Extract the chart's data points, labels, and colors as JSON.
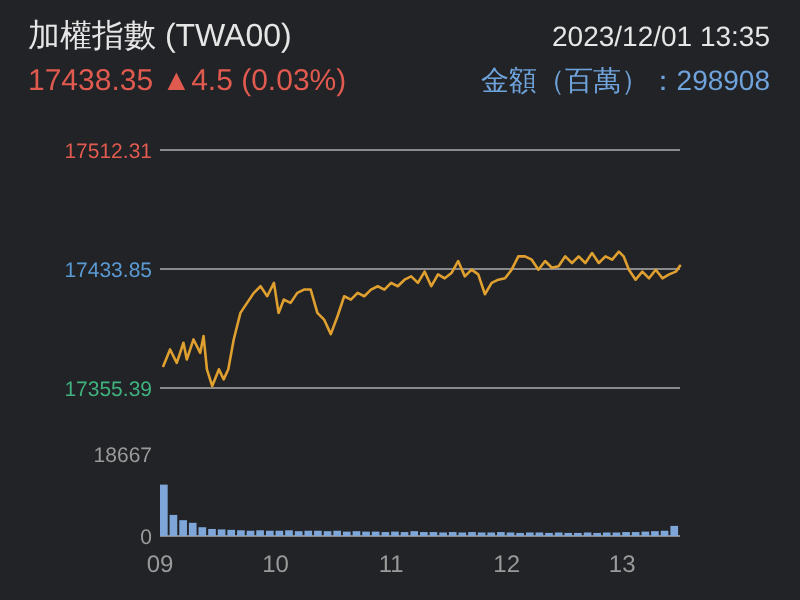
{
  "chart_data": [
    {
      "type": "line",
      "title": "加權指數 (TWA00)",
      "subtitle": "17438.35 ▲4.5 (0.03%)",
      "annotations": [
        "2023/12/01 13:35",
        "金額（百萬）：298908"
      ],
      "x": [
        9.029,
        9.087,
        9.145,
        9.203,
        9.232,
        9.29,
        9.348,
        9.377,
        9.406,
        9.452,
        9.51,
        9.551,
        9.591,
        9.638,
        9.696,
        9.754,
        9.812,
        9.87,
        9.928,
        9.986,
        10.026,
        10.072,
        10.13,
        10.188,
        10.246,
        10.304,
        10.362,
        10.42,
        10.478,
        10.536,
        10.594,
        10.652,
        10.71,
        10.768,
        10.826,
        10.884,
        10.942,
        11.0,
        11.058,
        11.116,
        11.174,
        11.232,
        11.29,
        11.348,
        11.406,
        11.464,
        11.522,
        11.58,
        11.638,
        11.696,
        11.754,
        11.812,
        11.87,
        11.928,
        11.986,
        12.043,
        12.101,
        12.159,
        12.217,
        12.275,
        12.333,
        12.391,
        12.449,
        12.507,
        12.565,
        12.623,
        12.681,
        12.739,
        12.797,
        12.855,
        12.913,
        12.971,
        13.012,
        13.058,
        13.116,
        13.174,
        13.232,
        13.29,
        13.348,
        13.406,
        13.464,
        13.5
      ],
      "series": [
        {
          "color": "#e0a030",
          "values": [
            17369.9,
            17380.8,
            17372.0,
            17385.2,
            17374.2,
            17387.4,
            17378.6,
            17389.6,
            17367.7,
            17356.7,
            17367.7,
            17361.1,
            17367.7,
            17387.4,
            17404.9,
            17411.5,
            17418.1,
            17422.5,
            17415.9,
            17424.7,
            17404.9,
            17413.7,
            17411.5,
            17418.1,
            17420.3,
            17420.3,
            17404.9,
            17400.5,
            17390.9,
            17402.7,
            17415.9,
            17413.7,
            17418.1,
            17415.9,
            17420.3,
            17422.5,
            17420.3,
            17424.7,
            17422.5,
            17426.8,
            17429.0,
            17424.7,
            17432.1,
            17422.5,
            17430.3,
            17427.7,
            17431.2,
            17439.1,
            17429.0,
            17433.4,
            17430.3,
            17417.2,
            17424.7,
            17426.8,
            17427.7,
            17433.4,
            17442.2,
            17442.2,
            17440.0,
            17433.4,
            17439.1,
            17434.7,
            17435.6,
            17442.2,
            17437.8,
            17442.2,
            17437.8,
            17444.4,
            17437.8,
            17442.2,
            17440.0,
            17445.3,
            17442.2,
            17433.4,
            17426.8,
            17432.1,
            17427.7,
            17433.4,
            17427.7,
            17430.3,
            17432.1,
            17436.0
          ]
        }
      ],
      "xlim": [
        9,
        13.5
      ],
      "ylim": [
        17355.39,
        17512.31
      ],
      "yticks": [
        17355.39,
        17433.85,
        17512.31
      ],
      "grid": "y",
      "tick_labels": "y"
    },
    {
      "type": "bar",
      "x": [
        9.0,
        9.083,
        9.167,
        9.25,
        9.333,
        9.417,
        9.5,
        9.583,
        9.667,
        9.75,
        9.833,
        9.917,
        10.0,
        10.083,
        10.167,
        10.25,
        10.333,
        10.417,
        10.5,
        10.583,
        10.667,
        10.75,
        10.833,
        10.917,
        11.0,
        11.083,
        11.167,
        11.25,
        11.333,
        11.417,
        11.5,
        11.583,
        11.667,
        11.75,
        11.833,
        11.917,
        12.0,
        12.083,
        12.167,
        12.25,
        12.333,
        12.417,
        12.5,
        12.583,
        12.667,
        12.75,
        12.833,
        12.917,
        13.0,
        13.083,
        13.167,
        13.25,
        13.333,
        13.417
      ],
      "color": "#7ea6d8",
      "values": [
        11700,
        4800,
        3600,
        3000,
        2000,
        1600,
        1500,
        1400,
        1300,
        1200,
        1300,
        1200,
        1200,
        1300,
        1100,
        1200,
        1200,
        1100,
        1200,
        1000,
        1100,
        1000,
        1000,
        900,
        1000,
        900,
        1100,
        900,
        900,
        800,
        900,
        800,
        900,
        800,
        800,
        900,
        800,
        700,
        800,
        800,
        700,
        800,
        700,
        700,
        800,
        700,
        800,
        800,
        900,
        900,
        1000,
        1100,
        1200,
        2300
      ],
      "xlim": [
        9,
        13.5
      ],
      "xticks": [
        {
          "value": 9,
          "label": "09"
        },
        10,
        11,
        12,
        13
      ],
      "ylim": [
        0,
        18667
      ],
      "yticks": [
        0,
        18667
      ],
      "grid": false
    }
  ]
}
